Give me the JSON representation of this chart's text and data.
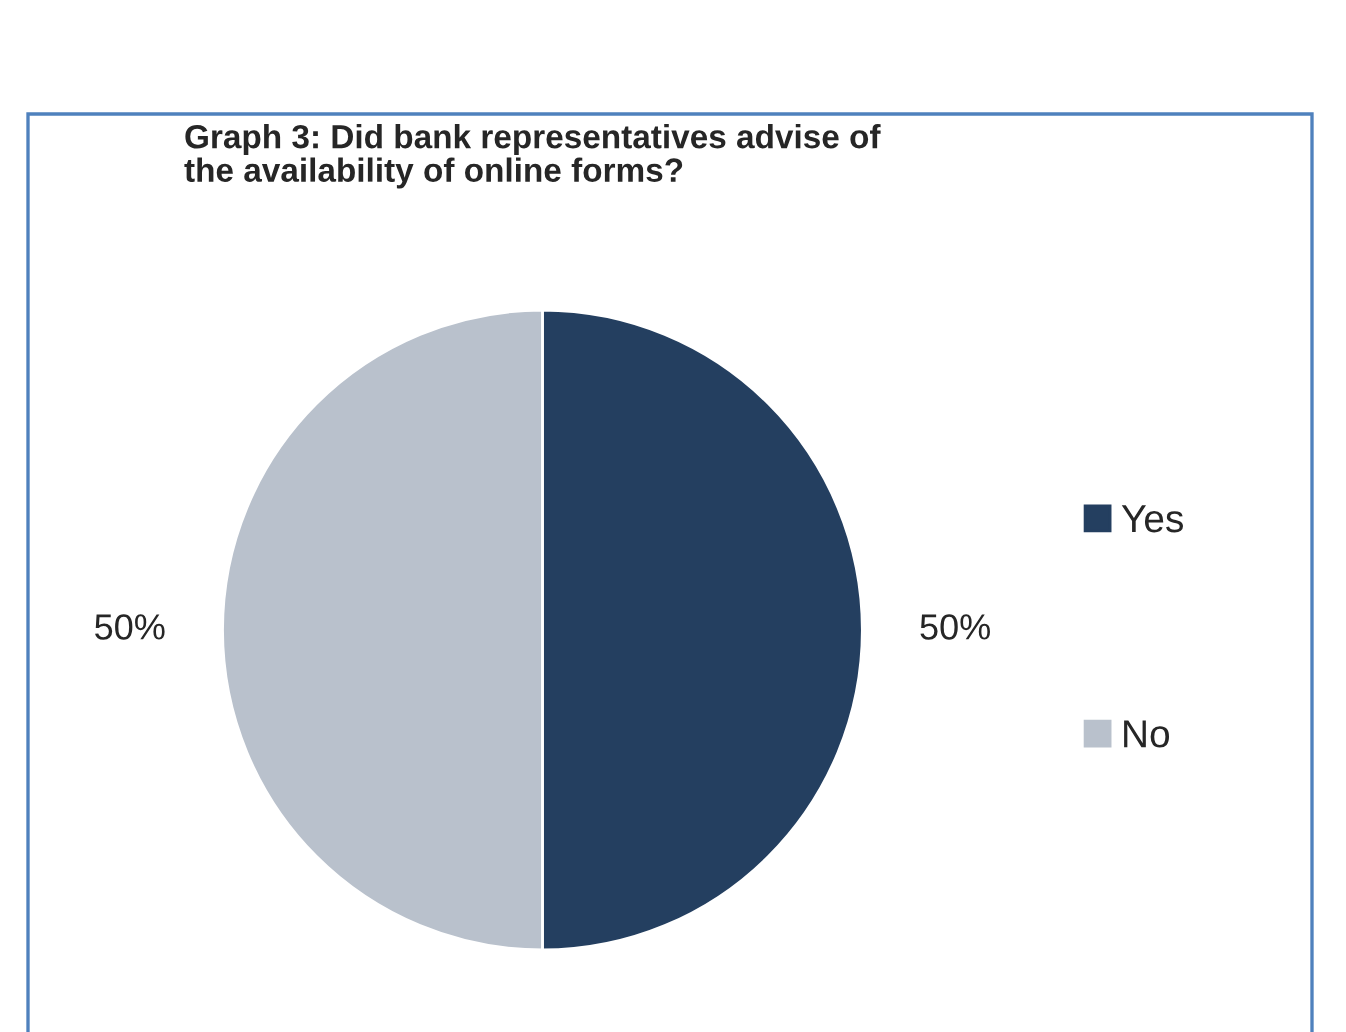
{
  "chart_data": {
    "type": "pie",
    "title": "Graph 3: Did bank representatives advise of\nthe availability of online forms?",
    "categories": [
      "Yes",
      "No"
    ],
    "values": [
      50,
      50
    ],
    "colors": [
      "#243f60",
      "#b9c1cc"
    ],
    "value_labels": [
      "50%",
      "50%"
    ],
    "legend": "right"
  }
}
